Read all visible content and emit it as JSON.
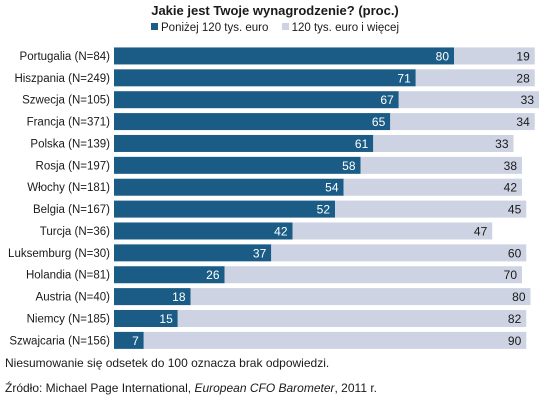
{
  "chart_data": {
    "type": "bar",
    "stacked": true,
    "orientation": "horizontal",
    "title": "Jakie jest Twoje wynagrodzenie? (proc.)",
    "categories": [
      "Portugalia (N=84)",
      "Hiszpania (N=249)",
      "Szwecja (N=105)",
      "Francja (N=371)",
      "Polska (N=139)",
      "Rosja (N=197)",
      "Włochy (N=181)",
      "Belgia (N=167)",
      "Turcja (N=36)",
      "Luksemburg (N=30)",
      "Holandia (N=81)",
      "Austria (N=40)",
      "Niemcy (N=185)",
      "Szwajcaria (N=156)"
    ],
    "series": [
      {
        "name": "Poniżej 120 tys. euro",
        "color": "#1b5c86",
        "values": [
          80,
          71,
          67,
          65,
          61,
          58,
          54,
          52,
          42,
          37,
          26,
          18,
          15,
          7
        ]
      },
      {
        "name": "120 tys. euro i więcej",
        "color": "#cdd3e2",
        "values": [
          19,
          28,
          33,
          34,
          33,
          38,
          42,
          45,
          47,
          60,
          70,
          80,
          82,
          90
        ]
      }
    ],
    "xlim": [
      0,
      100
    ],
    "legend_position": "top",
    "grid": false
  },
  "note": "Niesumowanie się odsetek do 100 oznacza brak odpowiedzi.",
  "source": {
    "prefix": "Źródło: Michael Page International, ",
    "publication": "European CFO Barometer",
    "suffix": ", 2011 r."
  }
}
